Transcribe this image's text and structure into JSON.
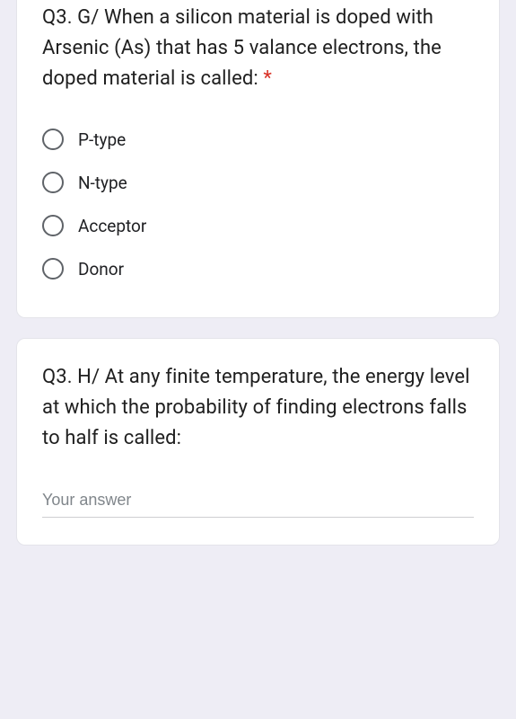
{
  "colors": {
    "page_background": "#eeedf5",
    "card_background": "#ffffff",
    "card_border": "#e4e4ea",
    "text": "#202124",
    "required": "#d93025",
    "radio_border": "#5f6368",
    "input_border": "#cfcfd1",
    "placeholder": "#80868b"
  },
  "card1": {
    "question": "Q3. G/ When a silicon material is doped with Arsenic (As) that has 5 valance electrons, the doped material is called: ",
    "required_mark": "*",
    "options": [
      {
        "label": "P-type"
      },
      {
        "label": "N-type"
      },
      {
        "label": "Acceptor"
      },
      {
        "label": "Donor"
      }
    ]
  },
  "card2": {
    "question": "Q3. H/ At any finite temperature, the energy level at which the probability of finding electrons falls to half is called:",
    "answer_placeholder": "Your answer",
    "answer_value": ""
  }
}
